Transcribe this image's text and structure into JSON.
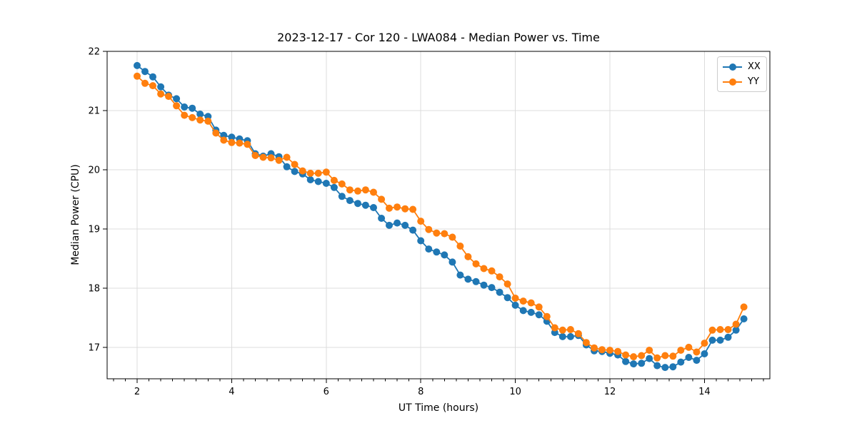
{
  "figure": {
    "background": "#ffffff",
    "spine_color": "#000000",
    "grid_color": "#dcdcdc"
  },
  "chart_data": {
    "type": "line",
    "title": "2023-12-17 - Cor 120 - LWA084 - Median Power vs. Time",
    "xlabel": "UT Time (hours)",
    "ylabel": "Median Power (CPU)",
    "xlim": [
      1.366,
      15.383
    ],
    "ylim": [
      16.468,
      22.0
    ],
    "x_ticks": [
      2,
      4,
      6,
      8,
      10,
      12,
      14
    ],
    "y_ticks": [
      17,
      18,
      19,
      20,
      21,
      22
    ],
    "x_minor_step": 0.25,
    "grid": true,
    "legend_position": "upper right",
    "marker": "circle",
    "x": [
      2.0,
      2.167,
      2.333,
      2.5,
      2.667,
      2.833,
      3.0,
      3.167,
      3.333,
      3.5,
      3.667,
      3.833,
      4.0,
      4.167,
      4.333,
      4.5,
      4.667,
      4.833,
      5.0,
      5.167,
      5.333,
      5.5,
      5.667,
      5.833,
      6.0,
      6.167,
      6.333,
      6.5,
      6.667,
      6.833,
      7.0,
      7.167,
      7.333,
      7.5,
      7.667,
      7.833,
      8.0,
      8.167,
      8.333,
      8.5,
      8.667,
      8.833,
      9.0,
      9.167,
      9.333,
      9.5,
      9.667,
      9.833,
      10.0,
      10.167,
      10.333,
      10.5,
      10.667,
      10.833,
      11.0,
      11.167,
      11.333,
      11.5,
      11.667,
      11.833,
      12.0,
      12.167,
      12.333,
      12.5,
      12.667,
      12.833,
      13.0,
      13.167,
      13.333,
      13.5,
      13.667,
      13.833,
      14.0,
      14.167,
      14.333,
      14.5,
      14.667,
      14.833
    ],
    "series": [
      {
        "name": "XX",
        "color": "#1f77b4",
        "values": [
          21.76,
          21.66,
          21.57,
          21.4,
          21.26,
          21.2,
          21.06,
          21.04,
          20.94,
          20.9,
          20.67,
          20.58,
          20.55,
          20.52,
          20.49,
          20.27,
          20.23,
          20.27,
          20.22,
          20.05,
          19.97,
          19.93,
          19.83,
          19.8,
          19.77,
          19.7,
          19.55,
          19.48,
          19.43,
          19.4,
          19.36,
          19.18,
          19.06,
          19.1,
          19.06,
          18.98,
          18.8,
          18.66,
          18.61,
          18.56,
          18.44,
          18.22,
          18.15,
          18.11,
          18.05,
          18.01,
          17.93,
          17.84,
          17.71,
          17.62,
          17.59,
          17.55,
          17.44,
          17.25,
          17.18,
          17.18,
          17.2,
          17.04,
          16.94,
          16.93,
          16.9,
          16.87,
          16.76,
          16.72,
          16.73,
          16.81,
          16.69,
          16.66,
          16.67,
          16.75,
          16.83,
          16.78,
          16.89,
          17.12,
          17.12,
          17.17,
          17.29,
          17.48
        ]
      },
      {
        "name": "YY",
        "color": "#ff7f0e",
        "values": [
          21.58,
          21.46,
          21.42,
          21.28,
          21.24,
          21.08,
          20.92,
          20.88,
          20.84,
          20.82,
          20.62,
          20.5,
          20.46,
          20.45,
          20.43,
          20.24,
          20.21,
          20.2,
          20.16,
          20.21,
          20.09,
          19.98,
          19.94,
          19.94,
          19.96,
          19.82,
          19.76,
          19.66,
          19.64,
          19.66,
          19.62,
          19.5,
          19.35,
          19.37,
          19.34,
          19.33,
          19.13,
          18.99,
          18.93,
          18.92,
          18.86,
          18.71,
          18.53,
          18.41,
          18.33,
          18.29,
          18.19,
          18.07,
          17.83,
          17.78,
          17.75,
          17.68,
          17.52,
          17.33,
          17.29,
          17.3,
          17.23,
          17.08,
          16.99,
          16.96,
          16.95,
          16.93,
          16.87,
          16.84,
          16.86,
          16.95,
          16.82,
          16.86,
          16.85,
          16.95,
          17.0,
          16.92,
          17.07,
          17.29,
          17.3,
          17.3,
          17.39,
          17.68
        ]
      }
    ]
  }
}
